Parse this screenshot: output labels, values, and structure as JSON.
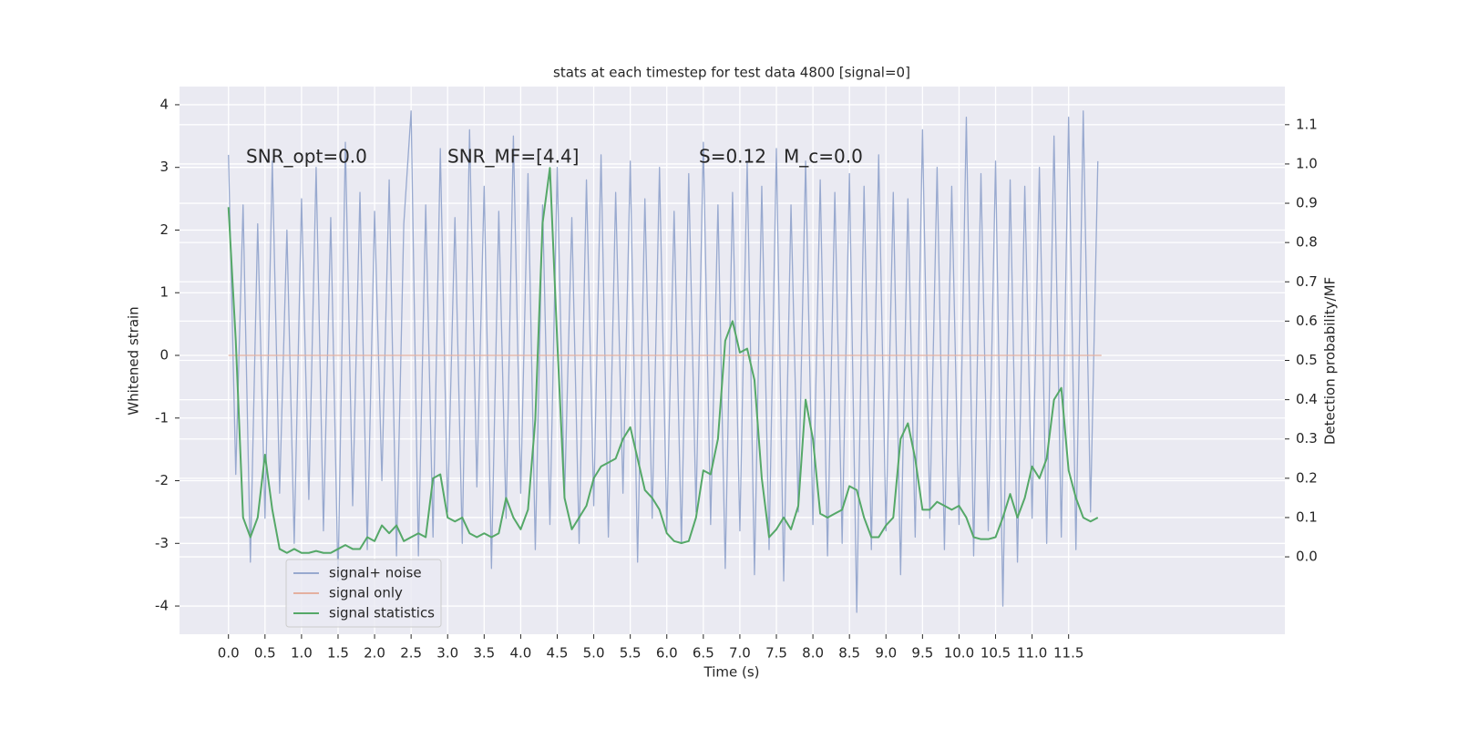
{
  "chart_data": {
    "type": "line",
    "title": "stats at each timestep for test data 4800 [signal=0]",
    "xlabel": "Time (s)",
    "ylabel": "Whitened strain",
    "y2label": "Detection probability/MF",
    "annotations": [
      "SNR_opt=0.0",
      "SNR_MF=[4.4]",
      "S=0.12",
      "M_c=0.0"
    ],
    "grid": true,
    "legend": "lower left",
    "xlim": [
      -0.67,
      14.46
    ],
    "ylim": [
      -4.45,
      4.29
    ],
    "y2lim": [
      -0.197,
      1.197
    ],
    "xticks": [
      {
        "value": 0,
        "label": "0.0"
      },
      0.5,
      {
        "value": 1,
        "label": "1.0"
      },
      1.5,
      {
        "value": 2,
        "label": "2.0"
      },
      2.5,
      {
        "value": 3,
        "label": "3.0"
      },
      3.5,
      {
        "value": 4,
        "label": "4.0"
      },
      4.5,
      {
        "value": 5,
        "label": "5.0"
      },
      5.5,
      {
        "value": 6,
        "label": "6.0"
      },
      6.5,
      {
        "value": 7,
        "label": "7.0"
      },
      7.5,
      {
        "value": 8,
        "label": "8.0"
      },
      8.5,
      {
        "value": 9,
        "label": "9.0"
      },
      9.5,
      {
        "value": 10,
        "label": "10.0"
      },
      10.5,
      {
        "value": 11,
        "label": "11.0"
      },
      11.5
    ],
    "yticks": [
      -4,
      -3,
      -2,
      -1,
      0,
      1,
      2,
      3,
      4
    ],
    "y2ticks": [
      {
        "value": 0,
        "label": "0.0"
      },
      0.1,
      0.2,
      0.3,
      0.4,
      0.5,
      0.6,
      0.7,
      0.8,
      0.9,
      {
        "value": 1,
        "label": "1.0"
      },
      1.1
    ],
    "x": [
      0.0,
      0.1,
      0.2,
      0.3,
      0.4,
      0.5,
      0.6,
      0.7,
      0.8,
      0.9,
      1.0,
      1.1,
      1.2,
      1.3,
      1.4,
      1.5,
      1.6,
      1.7,
      1.8,
      1.9,
      2.0,
      2.1,
      2.2,
      2.3,
      2.4,
      2.5,
      2.6,
      2.7,
      2.8,
      2.9,
      3.0,
      3.1,
      3.2,
      3.3,
      3.4,
      3.5,
      3.6,
      3.7,
      3.8,
      3.9,
      4.0,
      4.1,
      4.2,
      4.3,
      4.4,
      4.5,
      4.6,
      4.7,
      4.8,
      4.9,
      5.0,
      5.1,
      5.2,
      5.3,
      5.4,
      5.5,
      5.6,
      5.7,
      5.8,
      5.9,
      6.0,
      6.1,
      6.2,
      6.3,
      6.4,
      6.5,
      6.6,
      6.7,
      6.8,
      6.9,
      7.0,
      7.1,
      7.2,
      7.3,
      7.4,
      7.5,
      7.6,
      7.7,
      7.8,
      7.9,
      8.0,
      8.1,
      8.2,
      8.3,
      8.4,
      8.5,
      8.6,
      8.7,
      8.8,
      8.9,
      9.0,
      9.1,
      9.2,
      9.3,
      9.4,
      9.5,
      9.6,
      9.7,
      9.8,
      9.9,
      10.0,
      10.1,
      10.2,
      10.3,
      10.4,
      10.5,
      10.6,
      10.7,
      10.8,
      10.9,
      11.0,
      11.1,
      11.2,
      11.3,
      11.4,
      11.5,
      11.6,
      11.7,
      11.8,
      11.9
    ],
    "series": [
      {
        "name": "signal+ noise",
        "color": "#98a9cf",
        "values": [
          3.2,
          -1.9,
          2.4,
          -3.3,
          2.1,
          -2.6,
          3.1,
          -2.2,
          2.0,
          -3.0,
          2.5,
          -2.3,
          3.0,
          -2.8,
          2.2,
          -3.6,
          3.4,
          -2.4,
          2.6,
          -3.1,
          2.3,
          -2.0,
          2.8,
          -3.2,
          2.1,
          3.9,
          -3.2,
          2.4,
          -2.9,
          3.3,
          -2.5,
          2.2,
          -3.0,
          3.6,
          -2.1,
          2.7,
          -3.4,
          2.3,
          -2.6,
          3.5,
          -2.2,
          2.9,
          -3.1,
          2.4,
          -2.7,
          3.0,
          -2.3,
          2.2,
          -3.0,
          2.8,
          -2.4,
          3.2,
          -2.9,
          2.6,
          -2.2,
          3.1,
          -3.3,
          2.5,
          -2.6,
          3.0,
          -2.8,
          2.3,
          -3.0,
          2.9,
          -2.5,
          3.4,
          -2.7,
          2.4,
          -3.4,
          2.6,
          -2.8,
          3.1,
          -3.5,
          2.7,
          -3.1,
          3.3,
          -3.6,
          2.4,
          -2.5,
          3.1,
          -2.7,
          2.8,
          -3.2,
          2.6,
          -3.0,
          2.9,
          -4.1,
          2.7,
          -3.1,
          3.2,
          -2.8,
          2.6,
          -3.5,
          2.5,
          -2.9,
          3.6,
          -2.6,
          3.0,
          -3.1,
          2.7,
          -2.7,
          3.8,
          -3.2,
          2.9,
          -2.8,
          3.1,
          -4.0,
          2.8,
          -3.3,
          2.7,
          -2.6,
          3.0,
          -3.0,
          3.5,
          -2.9,
          3.8,
          -3.1,
          3.9,
          -2.5,
          3.1
        ]
      },
      {
        "name": "signal only",
        "color": "#e4b0a0",
        "x": [
          0.0,
          11.95
        ],
        "values": [
          0,
          0
        ]
      },
      {
        "name": "signal statistics",
        "color": "#55a868",
        "axis": "y2",
        "values": [
          0.89,
          0.55,
          0.1,
          0.05,
          0.1,
          0.26,
          0.12,
          0.02,
          0.01,
          0.02,
          0.01,
          0.01,
          0.015,
          0.01,
          0.01,
          0.02,
          0.03,
          0.02,
          0.02,
          0.05,
          0.04,
          0.08,
          0.06,
          0.08,
          0.04,
          0.05,
          0.06,
          0.05,
          0.2,
          0.21,
          0.1,
          0.09,
          0.1,
          0.06,
          0.05,
          0.06,
          0.05,
          0.06,
          0.15,
          0.1,
          0.07,
          0.12,
          0.35,
          0.85,
          0.99,
          0.55,
          0.15,
          0.07,
          0.1,
          0.13,
          0.2,
          0.23,
          0.24,
          0.25,
          0.3,
          0.33,
          0.25,
          0.17,
          0.15,
          0.12,
          0.06,
          0.04,
          0.035,
          0.04,
          0.1,
          0.22,
          0.21,
          0.3,
          0.55,
          0.6,
          0.52,
          0.53,
          0.45,
          0.2,
          0.05,
          0.07,
          0.1,
          0.07,
          0.13,
          0.4,
          0.3,
          0.11,
          0.1,
          0.11,
          0.12,
          0.18,
          0.17,
          0.1,
          0.05,
          0.05,
          0.08,
          0.1,
          0.3,
          0.34,
          0.25,
          0.12,
          0.12,
          0.14,
          0.13,
          0.12,
          0.13,
          0.1,
          0.05,
          0.045,
          0.045,
          0.05,
          0.1,
          0.16,
          0.1,
          0.15,
          0.23,
          0.2,
          0.25,
          0.4,
          0.43,
          0.22,
          0.15,
          0.1,
          0.09,
          0.1
        ]
      }
    ]
  }
}
